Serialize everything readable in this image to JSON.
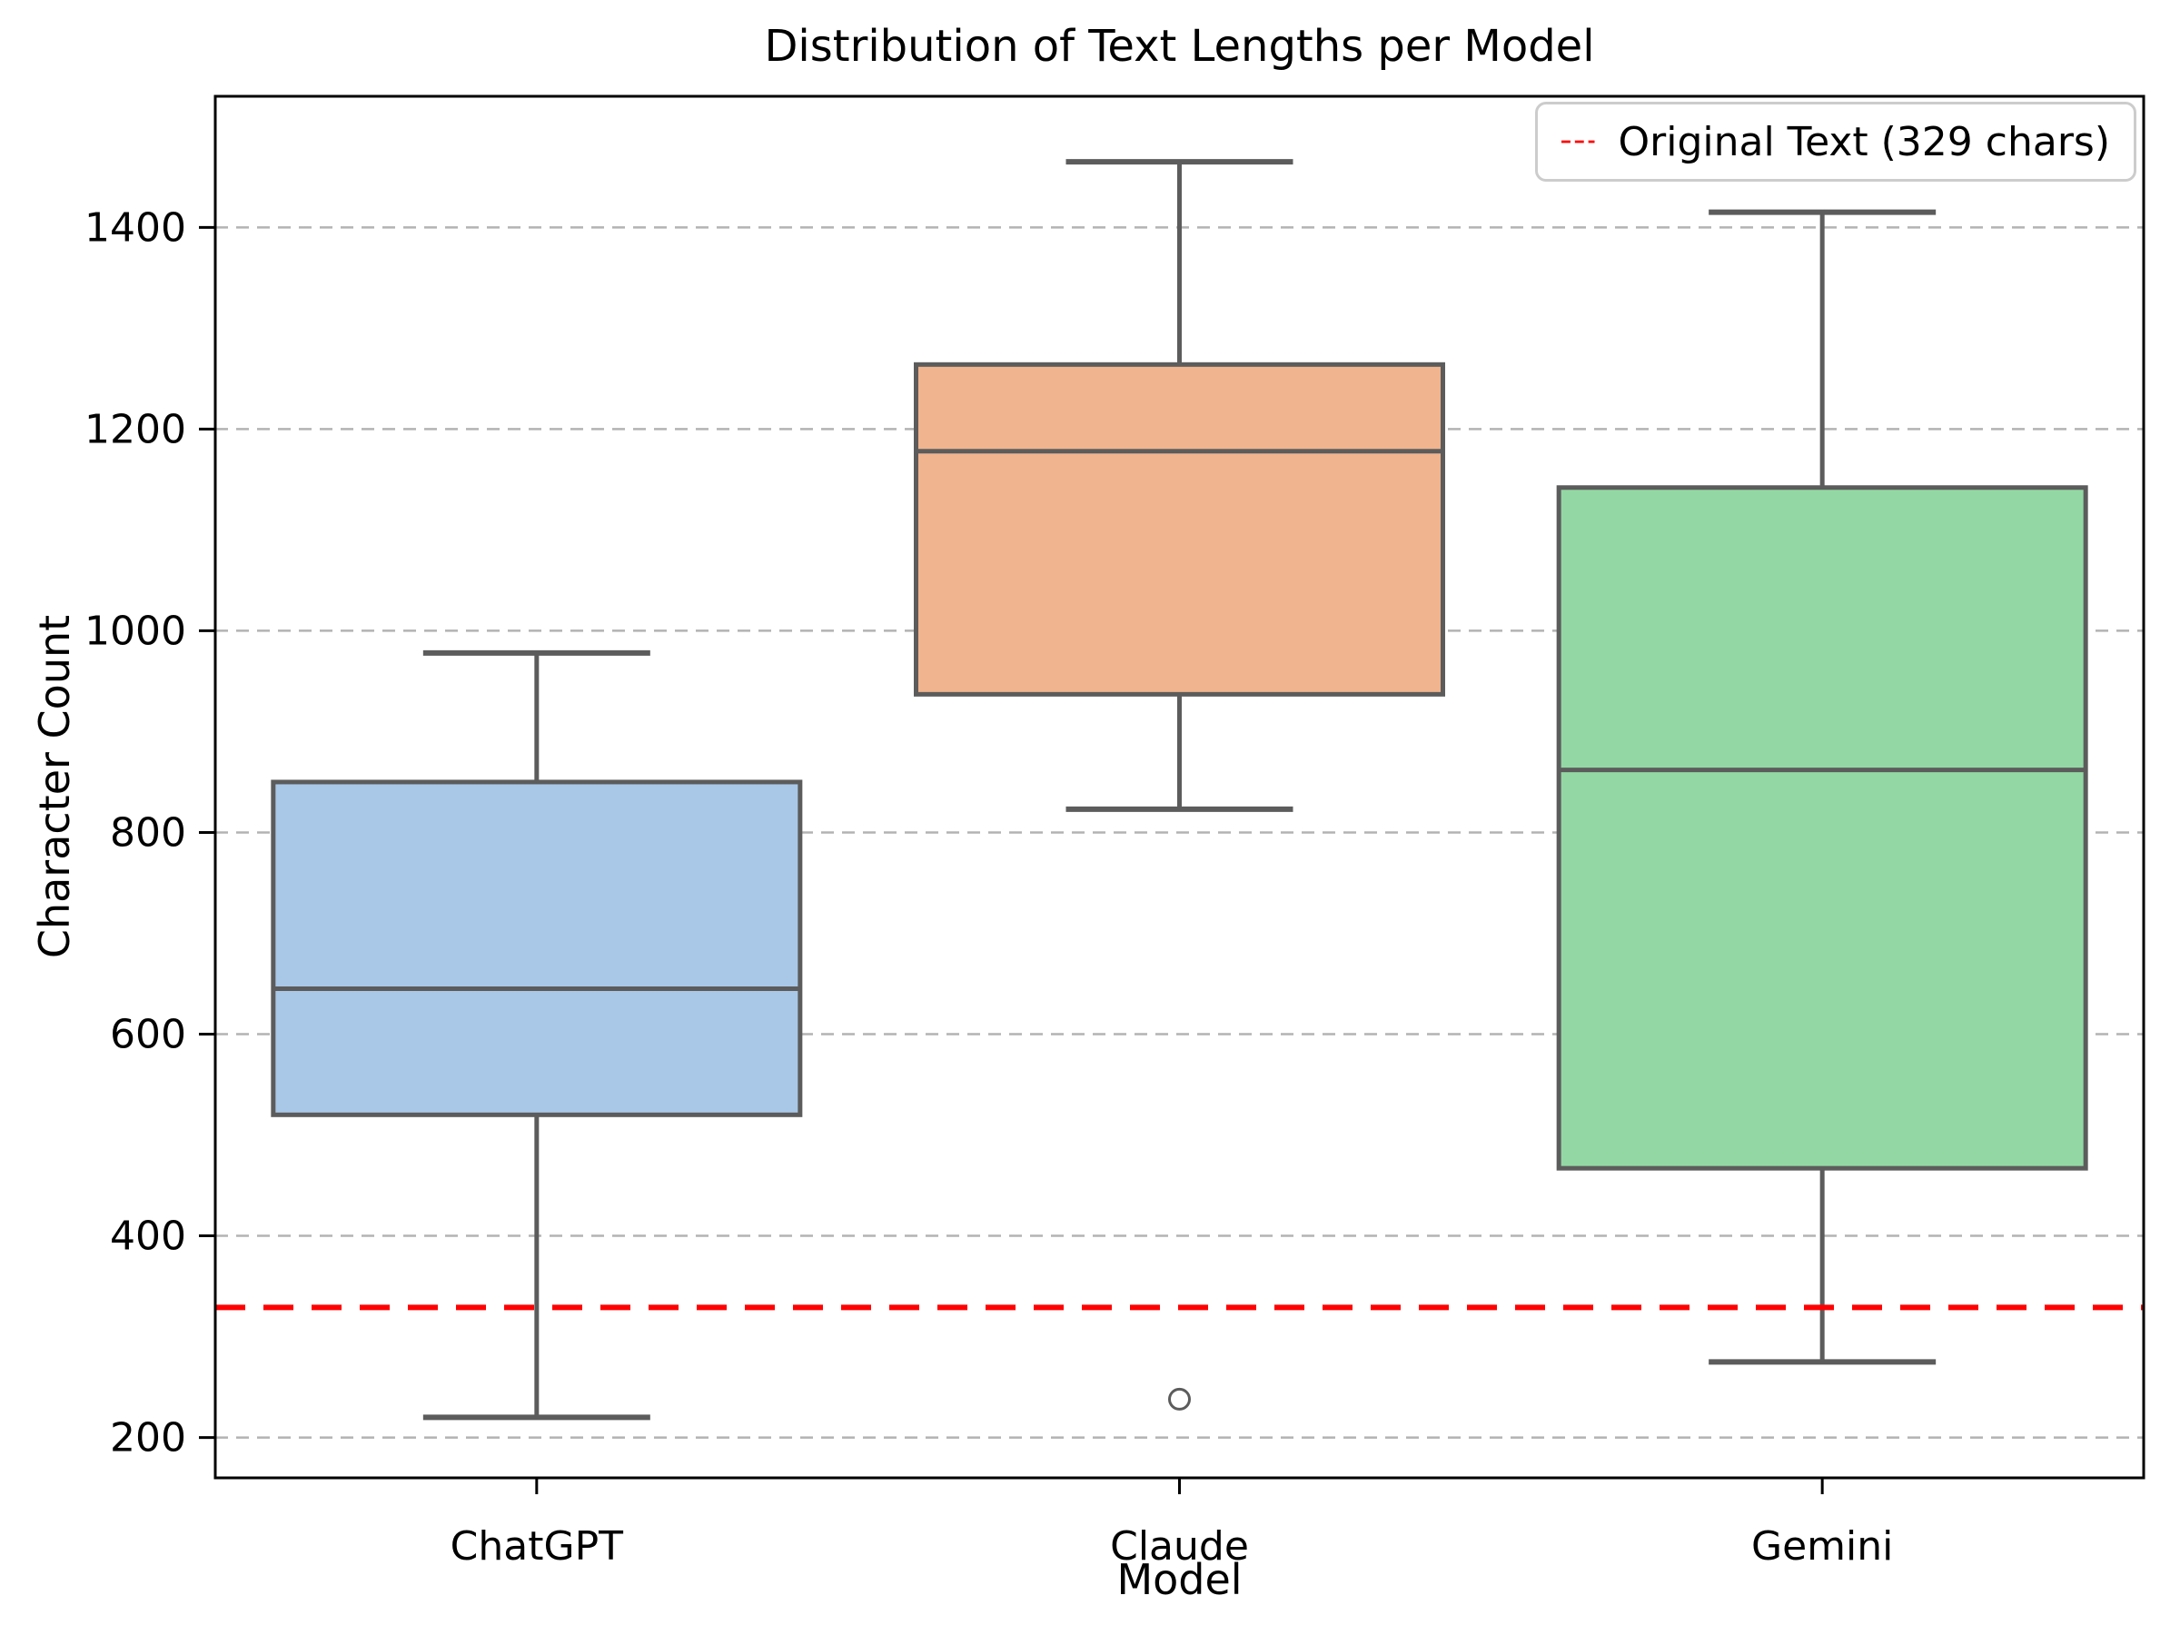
{
  "figure": {
    "title": "Distribution of Text Lengths per Model"
  },
  "axes": {
    "xlabel": "Model",
    "ylabel": "Character Count"
  },
  "legend": {
    "items": [
      {
        "label": "Original Text (329 chars)",
        "color": "#ff0000",
        "line_style": "dashed"
      }
    ]
  },
  "chart_data": {
    "type": "boxplot",
    "title": "Distribution of Text Lengths per Model",
    "xlabel": "Model",
    "ylabel": "Character Count",
    "categories": [
      "ChatGPT",
      "Claude",
      "Gemini"
    ],
    "series": [
      {
        "name": "ChatGPT",
        "whislo": 220,
        "q1": 520,
        "med": 645,
        "q3": 850,
        "whishi": 978,
        "fliers": [],
        "color": "#a9c8e8"
      },
      {
        "name": "Claude",
        "whislo": 823,
        "q1": 937,
        "med": 1178,
        "q3": 1264,
        "whishi": 1465,
        "fliers": [
          238
        ],
        "color": "#f0b48e"
      },
      {
        "name": "Gemini",
        "whislo": 275,
        "q1": 467,
        "med": 862,
        "q3": 1142,
        "whishi": 1415,
        "fliers": [],
        "color": "#93d8a4"
      }
    ],
    "reference_line": {
      "value": 329,
      "label": "Original Text (329 chars)",
      "color": "#ff0000",
      "style": "dashed"
    },
    "yticks": [
      200,
      400,
      600,
      800,
      1000,
      1200,
      1400
    ],
    "ylim": [
      160,
      1530
    ],
    "grid": true,
    "grid_style": "dashed",
    "legend_position": "upper right",
    "styles": {
      "box_edge_color": "#5c5c5c",
      "median_color": "#5c5c5c",
      "whisker_color": "#5c5c5c",
      "flier_edge_color": "#5c5c5c",
      "grid_color": "#b3b3b3",
      "spine_color": "#000000",
      "tick_label_color": "#000000"
    }
  }
}
